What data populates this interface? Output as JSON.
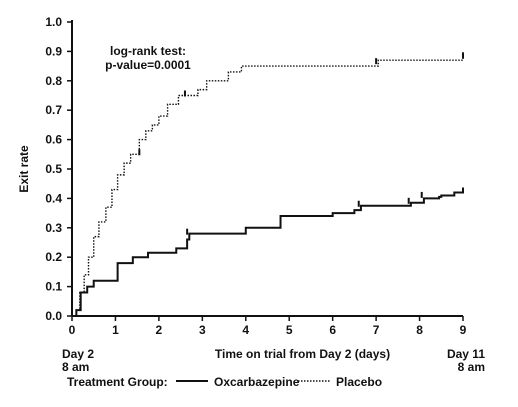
{
  "chart_data": {
    "type": "line",
    "xlabel": "Time on trial from Day 2 (days)",
    "ylabel": "Exit rate",
    "xlim": [
      0,
      9
    ],
    "ylim": [
      0,
      1.0
    ],
    "x_ticks": [
      "0",
      "1",
      "2",
      "3",
      "4",
      "5",
      "6",
      "7",
      "8",
      "9"
    ],
    "y_ticks": [
      "0.0",
      "0.1",
      "0.2",
      "0.3",
      "0.4",
      "0.5",
      "0.6",
      "0.7",
      "0.8",
      "0.9",
      "1.0"
    ],
    "x_start_label": [
      "Day 2",
      "8 am"
    ],
    "x_end_label": [
      "Day 11",
      "8 am"
    ],
    "annotation": [
      "log-rank test:",
      "p-value=0.0001"
    ],
    "legend": {
      "title": "Treatment Group:",
      "placement": "bottom",
      "entries": [
        "Oxcarbazepine",
        "Placebo"
      ]
    },
    "series": [
      {
        "name": "Oxcarbazepine",
        "style": "solid",
        "color": "#111111",
        "steps": [
          [
            0,
            0
          ],
          [
            0.1,
            0.02
          ],
          [
            0.2,
            0.08
          ],
          [
            0.35,
            0.1
          ],
          [
            0.5,
            0.12
          ],
          [
            1.05,
            0.18
          ],
          [
            1.4,
            0.2
          ],
          [
            1.75,
            0.215
          ],
          [
            2.4,
            0.23
          ],
          [
            2.65,
            0.26
          ],
          [
            2.7,
            0.28
          ],
          [
            3.5,
            0.28
          ],
          [
            4.0,
            0.3
          ],
          [
            4.8,
            0.34
          ],
          [
            6.0,
            0.35
          ],
          [
            6.5,
            0.36
          ],
          [
            6.65,
            0.375
          ],
          [
            7.8,
            0.385
          ],
          [
            8.1,
            0.4
          ],
          [
            8.45,
            0.405
          ],
          [
            8.5,
            0.41
          ],
          [
            8.8,
            0.42
          ],
          [
            9.0,
            0.42
          ]
        ],
        "censor_marks": [
          [
            2.65,
            0.28
          ],
          [
            6.6,
            0.375
          ],
          [
            7.75,
            0.385
          ],
          [
            8.05,
            0.405
          ],
          [
            9.0,
            0.42
          ]
        ]
      },
      {
        "name": "Placebo",
        "style": "dotted",
        "color": "#111111",
        "steps": [
          [
            0,
            0
          ],
          [
            0.1,
            0.02
          ],
          [
            0.18,
            0.08
          ],
          [
            0.28,
            0.14
          ],
          [
            0.38,
            0.2
          ],
          [
            0.5,
            0.27
          ],
          [
            0.62,
            0.32
          ],
          [
            0.78,
            0.37
          ],
          [
            0.92,
            0.43
          ],
          [
            1.05,
            0.48
          ],
          [
            1.2,
            0.52
          ],
          [
            1.35,
            0.55
          ],
          [
            1.55,
            0.6
          ],
          [
            1.7,
            0.63
          ],
          [
            1.85,
            0.65
          ],
          [
            2.0,
            0.68
          ],
          [
            2.2,
            0.72
          ],
          [
            2.45,
            0.75
          ],
          [
            2.9,
            0.77
          ],
          [
            3.1,
            0.8
          ],
          [
            3.6,
            0.83
          ],
          [
            3.9,
            0.85
          ],
          [
            7.05,
            0.87
          ],
          [
            9.0,
            0.88
          ]
        ],
        "censor_marks": [
          [
            1.55,
            0.55
          ],
          [
            2.6,
            0.75
          ],
          [
            7.0,
            0.86
          ],
          [
            9.0,
            0.88
          ]
        ]
      }
    ]
  }
}
